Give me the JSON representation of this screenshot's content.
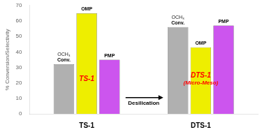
{
  "chart_data": {
    "type": "bar",
    "categories": [
      "TS-1",
      "DTS-1"
    ],
    "series": [
      {
        "name": "Conv.",
        "color": "#b0b0b0",
        "values": [
          32,
          56
        ]
      },
      {
        "name": "OMP",
        "color": "#eeee00",
        "values": [
          65,
          43
        ]
      },
      {
        "name": "PMP",
        "color": "#cc55ee",
        "values": [
          35,
          57
        ]
      }
    ],
    "ylabel": "% Conversion/Selectivity",
    "ylim": [
      0,
      70
    ],
    "yticks": [
      0,
      10,
      20,
      30,
      40,
      50,
      60,
      70
    ],
    "grid": false,
    "annotations": [
      {
        "text": "TS-1",
        "color": "#ff0000",
        "category": "TS-1"
      },
      {
        "text": "DTS-1",
        "color": "#ff0000",
        "category": "DTS-1"
      },
      {
        "text": "(Micro-Meso)",
        "color": "#ff0000",
        "category": "DTS-1"
      },
      {
        "text": "Desilication"
      },
      {
        "text": "OCH₃",
        "color": "#222222",
        "category": "TS-1",
        "series": "Conv."
      },
      {
        "text": "OCH₃",
        "color": "#222222",
        "category": "DTS-1",
        "series": "Conv."
      }
    ]
  }
}
